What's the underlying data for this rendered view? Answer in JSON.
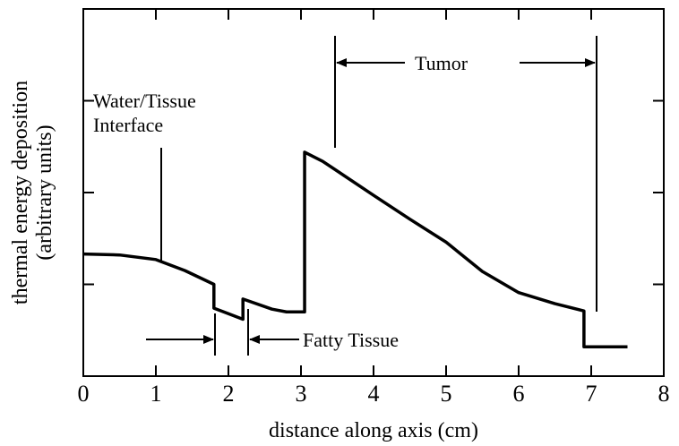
{
  "chart_data": {
    "type": "line",
    "xlabel": "distance along axis (cm)",
    "ylabel": [
      "thermal energy deposition",
      "(arbitrary units)"
    ],
    "annotations": [
      "Water/Tissue",
      "Interface",
      "Tumor",
      "Fatty Tissue"
    ],
    "x": [
      0,
      0.5,
      1.0,
      1.4,
      1.8,
      1.8,
      2.2,
      2.2,
      2.6,
      2.8,
      3.05,
      3.05,
      3.3,
      4.0,
      4.5,
      5.0,
      5.5,
      6.0,
      6.5,
      6.9,
      6.9,
      7.5
    ],
    "series": [
      {
        "name": "thermal energy deposition",
        "color": "#000000",
        "values": [
          1.33,
          1.32,
          1.27,
          1.15,
          1.0,
          0.74,
          0.62,
          0.84,
          0.73,
          0.7,
          0.7,
          2.44,
          2.34,
          1.97,
          1.71,
          1.46,
          1.14,
          0.91,
          0.79,
          0.71,
          0.32,
          0.32
        ]
      }
    ],
    "xlim": [
      0,
      8
    ],
    "xticks": [
      0,
      1,
      2,
      3,
      4,
      5,
      6,
      7,
      8
    ],
    "ylim": [
      0,
      4
    ],
    "yticks": [
      1,
      2,
      3
    ]
  }
}
